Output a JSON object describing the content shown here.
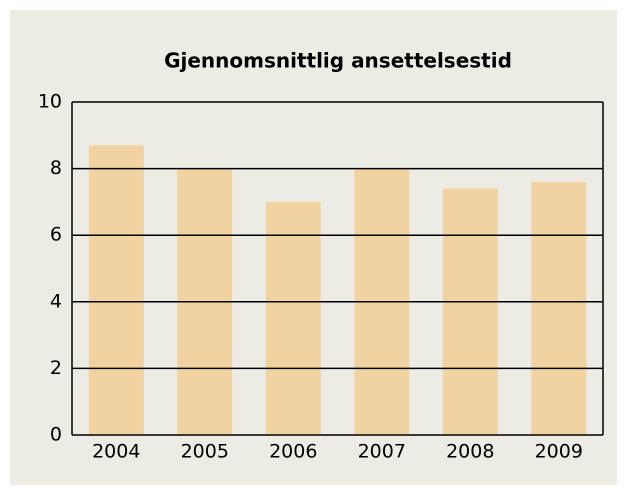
{
  "chart_data": {
    "type": "bar",
    "title": "Gjennomsnittlig ansettelsestid",
    "categories": [
      "2004",
      "2005",
      "2006",
      "2007",
      "2008",
      "2009"
    ],
    "values": [
      8.7,
      8.0,
      7.0,
      8.0,
      7.4,
      7.6
    ],
    "color": "#f0d3a0",
    "ylim": [
      0,
      10
    ],
    "yticks": [
      0,
      2,
      4,
      6,
      8,
      10
    ],
    "grid": true
  }
}
